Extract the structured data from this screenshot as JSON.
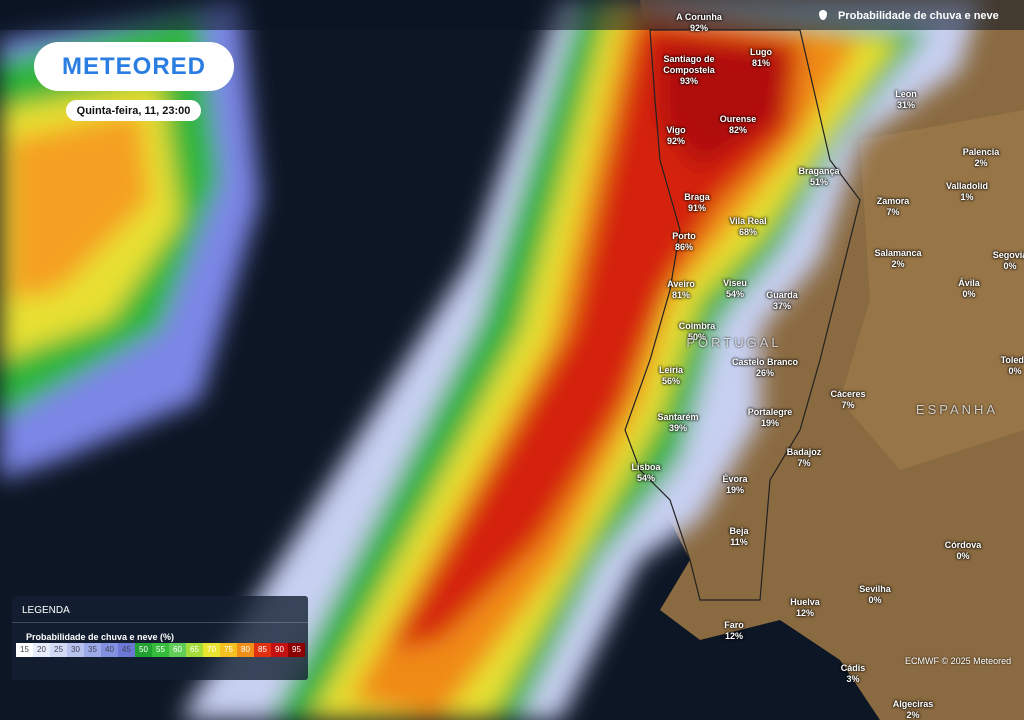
{
  "logo": "METEORED",
  "datetime": "Quinta-feira, 11, 23:00",
  "layer_title": "Probabilidade de chuva e neve",
  "cities": [
    {
      "name": "A Corunha",
      "value": "92%"
    },
    {
      "name": "Lugo",
      "value": "81%"
    },
    {
      "name": "Santiago de Compostela",
      "value": "93%"
    },
    {
      "name": "Leon",
      "value": "31%"
    },
    {
      "name": "Vigo",
      "value": "92%"
    },
    {
      "name": "Ourense",
      "value": "82%"
    },
    {
      "name": "Palencia",
      "value": "2%"
    },
    {
      "name": "Bragança",
      "value": "51%"
    },
    {
      "name": "Valladolid",
      "value": "1%"
    },
    {
      "name": "Zamora",
      "value": "7%"
    },
    {
      "name": "Braga",
      "value": "91%"
    },
    {
      "name": "Vila Real",
      "value": "68%"
    },
    {
      "name": "Porto",
      "value": "86%"
    },
    {
      "name": "Salamanca",
      "value": "2%"
    },
    {
      "name": "Segovia",
      "value": "0%"
    },
    {
      "name": "Aveiro",
      "value": "81%"
    },
    {
      "name": "Viseu",
      "value": "54%"
    },
    {
      "name": "Guarda",
      "value": "37%"
    },
    {
      "name": "Ávila",
      "value": "0%"
    },
    {
      "name": "Coimbra",
      "value": "50%"
    },
    {
      "name": "Castelo Branco",
      "value": "26%"
    },
    {
      "name": "Leiria",
      "value": "56%"
    },
    {
      "name": "Toledo",
      "value": "0%"
    },
    {
      "name": "Cáceres",
      "value": "7%"
    },
    {
      "name": "Portalegre",
      "value": "19%"
    },
    {
      "name": "Santarém",
      "value": "39%"
    },
    {
      "name": "Badajoz",
      "value": "7%"
    },
    {
      "name": "Lisboa",
      "value": "54%"
    },
    {
      "name": "Évora",
      "value": "19%"
    },
    {
      "name": "Beja",
      "value": "11%"
    },
    {
      "name": "Córdova",
      "value": "0%"
    },
    {
      "name": "Sevilha",
      "value": "0%"
    },
    {
      "name": "Huelva",
      "value": "12%"
    },
    {
      "name": "Faro",
      "value": "12%"
    },
    {
      "name": "Cádis",
      "value": "3%"
    },
    {
      "name": "Algeciras",
      "value": "2%"
    }
  ],
  "countries": [
    "PORTUGAL",
    "ESPANHA"
  ],
  "legend": {
    "title": "LEGENDA",
    "subtitle": "Probabilidade de chuva e neve (%)",
    "steps": [
      15,
      20,
      25,
      30,
      35,
      40,
      45,
      50,
      55,
      60,
      65,
      70,
      75,
      80,
      85,
      90,
      95
    ]
  },
  "credit": "ECMWF © 2025 Meteored"
}
